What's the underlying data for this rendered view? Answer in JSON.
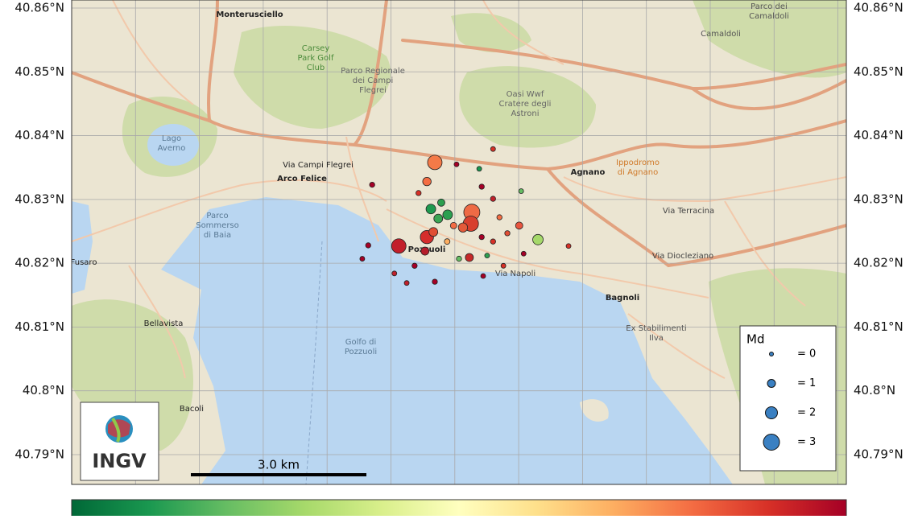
{
  "map": {
    "xlim": [
      14.05,
      14.207
    ],
    "ylim": [
      40.78533,
      40.86126
    ],
    "yticks": [
      {
        "value": 40.86,
        "label": "40.86°N"
      },
      {
        "value": 40.85,
        "label": "40.85°N"
      },
      {
        "value": 40.84,
        "label": "40.84°N"
      },
      {
        "value": 40.83,
        "label": "40.83°N"
      },
      {
        "value": 40.82,
        "label": "40.82°N"
      },
      {
        "value": 40.81,
        "label": "40.81°N"
      },
      {
        "value": 40.8,
        "label": "40.8°N"
      },
      {
        "value": 40.79,
        "label": "40.79°N"
      }
    ],
    "places": [
      {
        "lines": [
          "Monterusciello"
        ]
      },
      {
        "lines": [
          "Carsey",
          "Park Golf",
          "Club"
        ]
      },
      {
        "lines": [
          "Parco Regionale",
          "dei Campi",
          "Flegrei"
        ]
      },
      {
        "lines": [
          "Oasi Wwf",
          "Cratere degli",
          "Astroni"
        ]
      },
      {
        "lines": [
          "Lago",
          "Averno"
        ]
      },
      {
        "lines": [
          "Arco Felice"
        ]
      },
      {
        "lines": [
          "Agnano"
        ]
      },
      {
        "lines": [
          "Ippodromo",
          "di Agnano"
        ]
      },
      {
        "lines": [
          "Parco",
          "Sommerso",
          "di Baia"
        ]
      },
      {
        "lines": [
          "Pozzuoli"
        ]
      },
      {
        "lines": [
          "Bagnoli"
        ]
      },
      {
        "lines": [
          "Ex Stabilimenti",
          "Ilva"
        ]
      },
      {
        "lines": [
          "Golfo di",
          "Pozzuoli"
        ]
      },
      {
        "lines": [
          "Bellavista"
        ]
      },
      {
        "lines": [
          "Bacoli"
        ]
      },
      {
        "lines": [
          "Fusaro"
        ]
      },
      {
        "lines": [
          "Camaldoli"
        ]
      },
      {
        "lines": [
          "Parco dei",
          "Camaldoli"
        ]
      },
      {
        "lines": [
          "Via Campi Flegrei"
        ]
      },
      {
        "lines": [
          "Via Diocleziano"
        ]
      },
      {
        "lines": [
          "Via Terracina"
        ]
      },
      {
        "lines": [
          "Via Napoli"
        ]
      }
    ],
    "legend": {
      "title": "Md",
      "entries": [
        {
          "value": 0,
          "label": "= 0"
        },
        {
          "value": 1,
          "label": "= 1"
        },
        {
          "value": 2,
          "label": "= 2"
        },
        {
          "value": 3,
          "label": "= 3"
        }
      ],
      "color": "#3a80c2"
    },
    "scalebar": "3.0 km",
    "logo": "INGV",
    "events": [
      {
        "lon": 14.1236,
        "lat": 40.8358,
        "md": 2.6,
        "color": "#f47a48"
      },
      {
        "lon": 14.1311,
        "lat": 40.828,
        "md": 3.0,
        "color": "#ee6a45"
      },
      {
        "lon": 14.1309,
        "lat": 40.8262,
        "md": 2.8,
        "color": "#d8402f"
      },
      {
        "lon": 14.1163,
        "lat": 40.8227,
        "md": 2.6,
        "color": "#c21f2b"
      },
      {
        "lon": 14.122,
        "lat": 40.8241,
        "md": 2.3,
        "color": "#d52d2c"
      },
      {
        "lon": 14.1445,
        "lat": 40.8237,
        "md": 1.6,
        "color": "#a5d86a"
      },
      {
        "lon": 14.1228,
        "lat": 40.8285,
        "md": 1.4,
        "color": "#1f9a4f"
      },
      {
        "lon": 14.1262,
        "lat": 40.8276,
        "md": 1.4,
        "color": "#2b9f50"
      },
      {
        "lon": 14.1243,
        "lat": 40.827,
        "md": 1.2,
        "color": "#3ba554"
      },
      {
        "lon": 14.122,
        "lat": 40.8328,
        "md": 1.1,
        "color": "#f46d43"
      },
      {
        "lon": 14.1233,
        "lat": 40.8249,
        "md": 1.2,
        "color": "#e04e34"
      },
      {
        "lon": 14.1306,
        "lat": 40.8209,
        "md": 1.0,
        "color": "#c62a2a"
      },
      {
        "lon": 14.1407,
        "lat": 40.8259,
        "md": 0.8,
        "color": "#e8553f"
      },
      {
        "lon": 14.1293,
        "lat": 40.8256,
        "md": 1.3,
        "color": "#e35a3a"
      },
      {
        "lon": 14.1216,
        "lat": 40.8219,
        "md": 1.0,
        "color": "#b51d2b"
      },
      {
        "lon": 14.1249,
        "lat": 40.8295,
        "md": 0.8,
        "color": "#2d9f4f"
      },
      {
        "lon": 14.1274,
        "lat": 40.8259,
        "md": 0.6,
        "color": "#f26b43"
      },
      {
        "lon": 14.1354,
        "lat": 40.8379,
        "md": 0.2,
        "color": "#d73027"
      },
      {
        "lon": 14.128,
        "lat": 40.8355,
        "md": 0.2,
        "color": "#a50026"
      },
      {
        "lon": 14.1326,
        "lat": 40.8348,
        "md": 0.2,
        "color": "#1a9850"
      },
      {
        "lon": 14.1109,
        "lat": 40.8323,
        "md": 0.3,
        "color": "#a50026"
      },
      {
        "lon": 14.1203,
        "lat": 40.831,
        "md": 0.3,
        "color": "#d73027"
      },
      {
        "lon": 14.1331,
        "lat": 40.832,
        "md": 0.3,
        "color": "#a50026"
      },
      {
        "lon": 14.1354,
        "lat": 40.8301,
        "md": 0.3,
        "color": "#c0202a"
      },
      {
        "lon": 14.1411,
        "lat": 40.8313,
        "md": 0.2,
        "color": "#66bd63"
      },
      {
        "lon": 14.1101,
        "lat": 40.8228,
        "md": 0.3,
        "color": "#a50026"
      },
      {
        "lon": 14.1195,
        "lat": 40.8196,
        "md": 0.3,
        "color": "#a50026"
      },
      {
        "lon": 14.1236,
        "lat": 40.8171,
        "md": 0.3,
        "color": "#a50026"
      },
      {
        "lon": 14.1179,
        "lat": 40.8169,
        "md": 0.2,
        "color": "#c0202a"
      },
      {
        "lon": 14.1334,
        "lat": 40.818,
        "md": 0.2,
        "color": "#a50026"
      },
      {
        "lon": 14.1375,
        "lat": 40.8196,
        "md": 0.2,
        "color": "#d73027"
      },
      {
        "lon": 14.1354,
        "lat": 40.8234,
        "md": 0.3,
        "color": "#d73027"
      },
      {
        "lon": 14.1507,
        "lat": 40.8227,
        "md": 0.2,
        "color": "#d73027"
      },
      {
        "lon": 14.1285,
        "lat": 40.8207,
        "md": 0.3,
        "color": "#66bd63"
      },
      {
        "lon": 14.1383,
        "lat": 40.8247,
        "md": 0.3,
        "color": "#e04e34"
      },
      {
        "lon": 14.1416,
        "lat": 40.8215,
        "md": 0.2,
        "color": "#a50026"
      },
      {
        "lon": 14.1154,
        "lat": 40.8184,
        "md": 0.2,
        "color": "#c0202a"
      },
      {
        "lon": 14.1261,
        "lat": 40.8234,
        "md": 0.4,
        "color": "#fdae61"
      },
      {
        "lon": 14.1331,
        "lat": 40.8241,
        "md": 0.3,
        "color": "#a50026"
      },
      {
        "lon": 14.1367,
        "lat": 40.8272,
        "md": 0.3,
        "color": "#f46d43"
      },
      {
        "lon": 14.1089,
        "lat": 40.8207,
        "md": 0.2,
        "color": "#a50026"
      },
      {
        "lon": 14.1342,
        "lat": 40.8212,
        "md": 0.2,
        "color": "#2d9f4f"
      }
    ]
  }
}
